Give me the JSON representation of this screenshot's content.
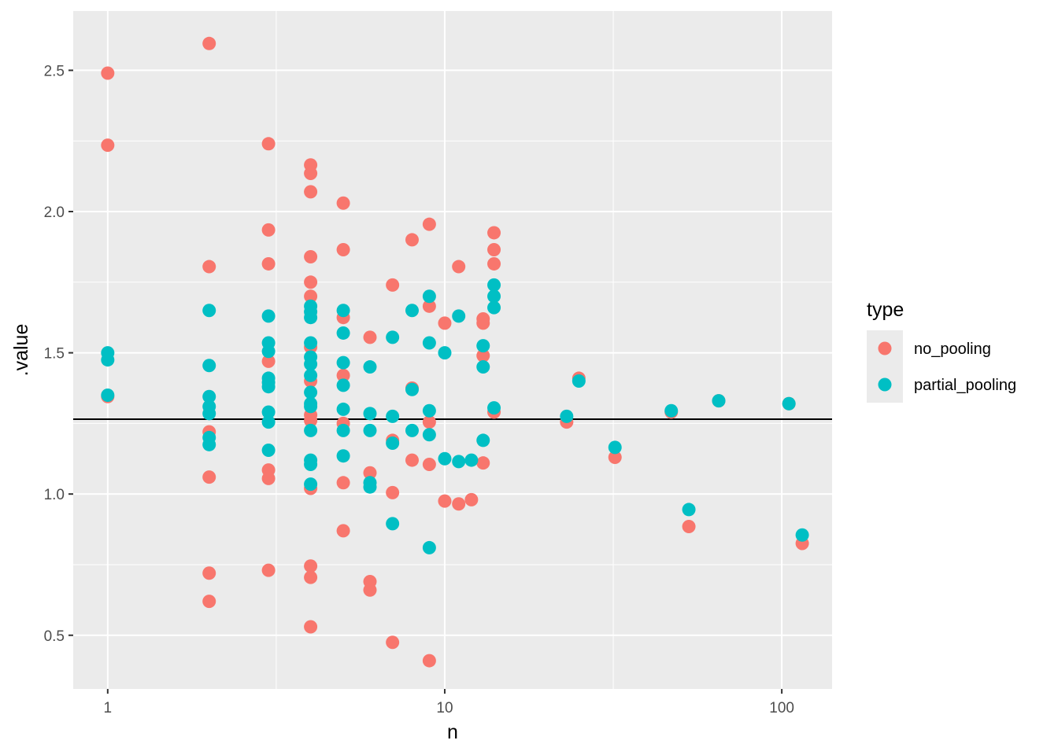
{
  "chart_data": {
    "type": "scatter",
    "xlabel": "n",
    "ylabel": ".value",
    "x_scale": "log10",
    "xlim": [
      0.79,
      141
    ],
    "ylim": [
      0.31,
      2.71
    ],
    "x_ticks": [
      1,
      10,
      100
    ],
    "x_tick_labels": [
      "1",
      "10",
      "100"
    ],
    "y_ticks": [
      0.5,
      1.0,
      1.5,
      2.0,
      2.5
    ],
    "y_tick_labels": [
      "0.5",
      "1.0",
      "1.5",
      "2.0",
      "2.5"
    ],
    "grid": true,
    "legend_position": "right",
    "legend_title": "type",
    "hline": 1.265,
    "series": [
      {
        "name": "no_pooling",
        "color": "#F8766D",
        "points": [
          [
            1,
            2.49
          ],
          [
            1,
            2.235
          ],
          [
            1,
            1.345
          ],
          [
            2,
            2.595
          ],
          [
            2,
            1.805
          ],
          [
            2,
            1.22
          ],
          [
            2,
            1.06
          ],
          [
            2,
            0.72
          ],
          [
            2,
            0.62
          ],
          [
            3,
            2.24
          ],
          [
            3,
            1.935
          ],
          [
            3,
            1.815
          ],
          [
            3,
            1.47
          ],
          [
            3,
            1.085
          ],
          [
            3,
            1.055
          ],
          [
            3,
            0.73
          ],
          [
            4,
            2.165
          ],
          [
            4,
            2.135
          ],
          [
            4,
            2.07
          ],
          [
            4,
            1.84
          ],
          [
            4,
            1.75
          ],
          [
            4,
            1.7
          ],
          [
            4,
            1.52
          ],
          [
            4,
            1.4
          ],
          [
            4,
            1.28
          ],
          [
            4,
            1.26
          ],
          [
            4,
            1.02
          ],
          [
            4,
            0.745
          ],
          [
            4,
            0.705
          ],
          [
            4,
            0.53
          ],
          [
            5,
            2.03
          ],
          [
            5,
            1.865
          ],
          [
            5,
            1.625
          ],
          [
            5,
            1.42
          ],
          [
            5,
            1.25
          ],
          [
            5,
            1.04
          ],
          [
            5,
            0.87
          ],
          [
            6,
            1.555
          ],
          [
            6,
            1.075
          ],
          [
            6,
            0.69
          ],
          [
            6,
            0.66
          ],
          [
            7,
            1.74
          ],
          [
            7,
            1.19
          ],
          [
            7,
            1.005
          ],
          [
            7,
            0.475
          ],
          [
            8,
            1.9
          ],
          [
            8,
            1.375
          ],
          [
            8,
            1.12
          ],
          [
            9,
            1.955
          ],
          [
            9,
            1.665
          ],
          [
            9,
            1.255
          ],
          [
            9,
            1.105
          ],
          [
            9,
            0.41
          ],
          [
            10,
            1.605
          ],
          [
            10,
            0.975
          ],
          [
            11,
            1.805
          ],
          [
            11,
            0.965
          ],
          [
            12,
            0.98
          ],
          [
            13,
            1.62
          ],
          [
            13,
            1.605
          ],
          [
            13,
            1.49
          ],
          [
            13,
            1.11
          ],
          [
            14,
            1.925
          ],
          [
            14,
            1.865
          ],
          [
            14,
            1.815
          ],
          [
            14,
            1.29
          ],
          [
            23,
            1.255
          ],
          [
            25,
            1.41
          ],
          [
            32,
            1.13
          ],
          [
            47,
            1.29
          ],
          [
            53,
            0.885
          ],
          [
            65,
            1.33
          ],
          [
            105,
            1.32
          ],
          [
            115,
            0.825
          ]
        ]
      },
      {
        "name": "partial_pooling",
        "color": "#00BFC4",
        "points": [
          [
            1,
            1.5
          ],
          [
            1,
            1.475
          ],
          [
            1,
            1.35
          ],
          [
            2,
            1.65
          ],
          [
            2,
            1.455
          ],
          [
            2,
            1.345
          ],
          [
            2,
            1.31
          ],
          [
            2,
            1.285
          ],
          [
            2,
            1.2
          ],
          [
            2,
            1.175
          ],
          [
            3,
            1.63
          ],
          [
            3,
            1.535
          ],
          [
            3,
            1.505
          ],
          [
            3,
            1.41
          ],
          [
            3,
            1.395
          ],
          [
            3,
            1.38
          ],
          [
            3,
            1.29
          ],
          [
            3,
            1.255
          ],
          [
            3,
            1.155
          ],
          [
            4,
            1.665
          ],
          [
            4,
            1.645
          ],
          [
            4,
            1.625
          ],
          [
            4,
            1.535
          ],
          [
            4,
            1.485
          ],
          [
            4,
            1.46
          ],
          [
            4,
            1.42
          ],
          [
            4,
            1.36
          ],
          [
            4,
            1.32
          ],
          [
            4,
            1.31
          ],
          [
            4,
            1.225
          ],
          [
            4,
            1.12
          ],
          [
            4,
            1.105
          ],
          [
            4,
            1.035
          ],
          [
            5,
            1.65
          ],
          [
            5,
            1.57
          ],
          [
            5,
            1.465
          ],
          [
            5,
            1.385
          ],
          [
            5,
            1.3
          ],
          [
            5,
            1.225
          ],
          [
            5,
            1.135
          ],
          [
            6,
            1.45
          ],
          [
            6,
            1.285
          ],
          [
            6,
            1.225
          ],
          [
            6,
            1.04
          ],
          [
            6,
            1.025
          ],
          [
            7,
            1.555
          ],
          [
            7,
            1.275
          ],
          [
            7,
            1.18
          ],
          [
            7,
            0.895
          ],
          [
            8,
            1.65
          ],
          [
            8,
            1.37
          ],
          [
            8,
            1.225
          ],
          [
            9,
            1.7
          ],
          [
            9,
            1.535
          ],
          [
            9,
            1.295
          ],
          [
            9,
            1.21
          ],
          [
            9,
            0.81
          ],
          [
            10,
            1.5
          ],
          [
            10,
            1.125
          ],
          [
            11,
            1.63
          ],
          [
            11,
            1.115
          ],
          [
            12,
            1.12
          ],
          [
            13,
            1.525
          ],
          [
            13,
            1.45
          ],
          [
            13,
            1.19
          ],
          [
            14,
            1.74
          ],
          [
            14,
            1.7
          ],
          [
            14,
            1.66
          ],
          [
            14,
            1.305
          ],
          [
            23,
            1.275
          ],
          [
            25,
            1.4
          ],
          [
            32,
            1.165
          ],
          [
            47,
            1.295
          ],
          [
            53,
            0.945
          ],
          [
            65,
            1.33
          ],
          [
            105,
            1.32
          ],
          [
            115,
            0.855
          ]
        ]
      }
    ]
  }
}
